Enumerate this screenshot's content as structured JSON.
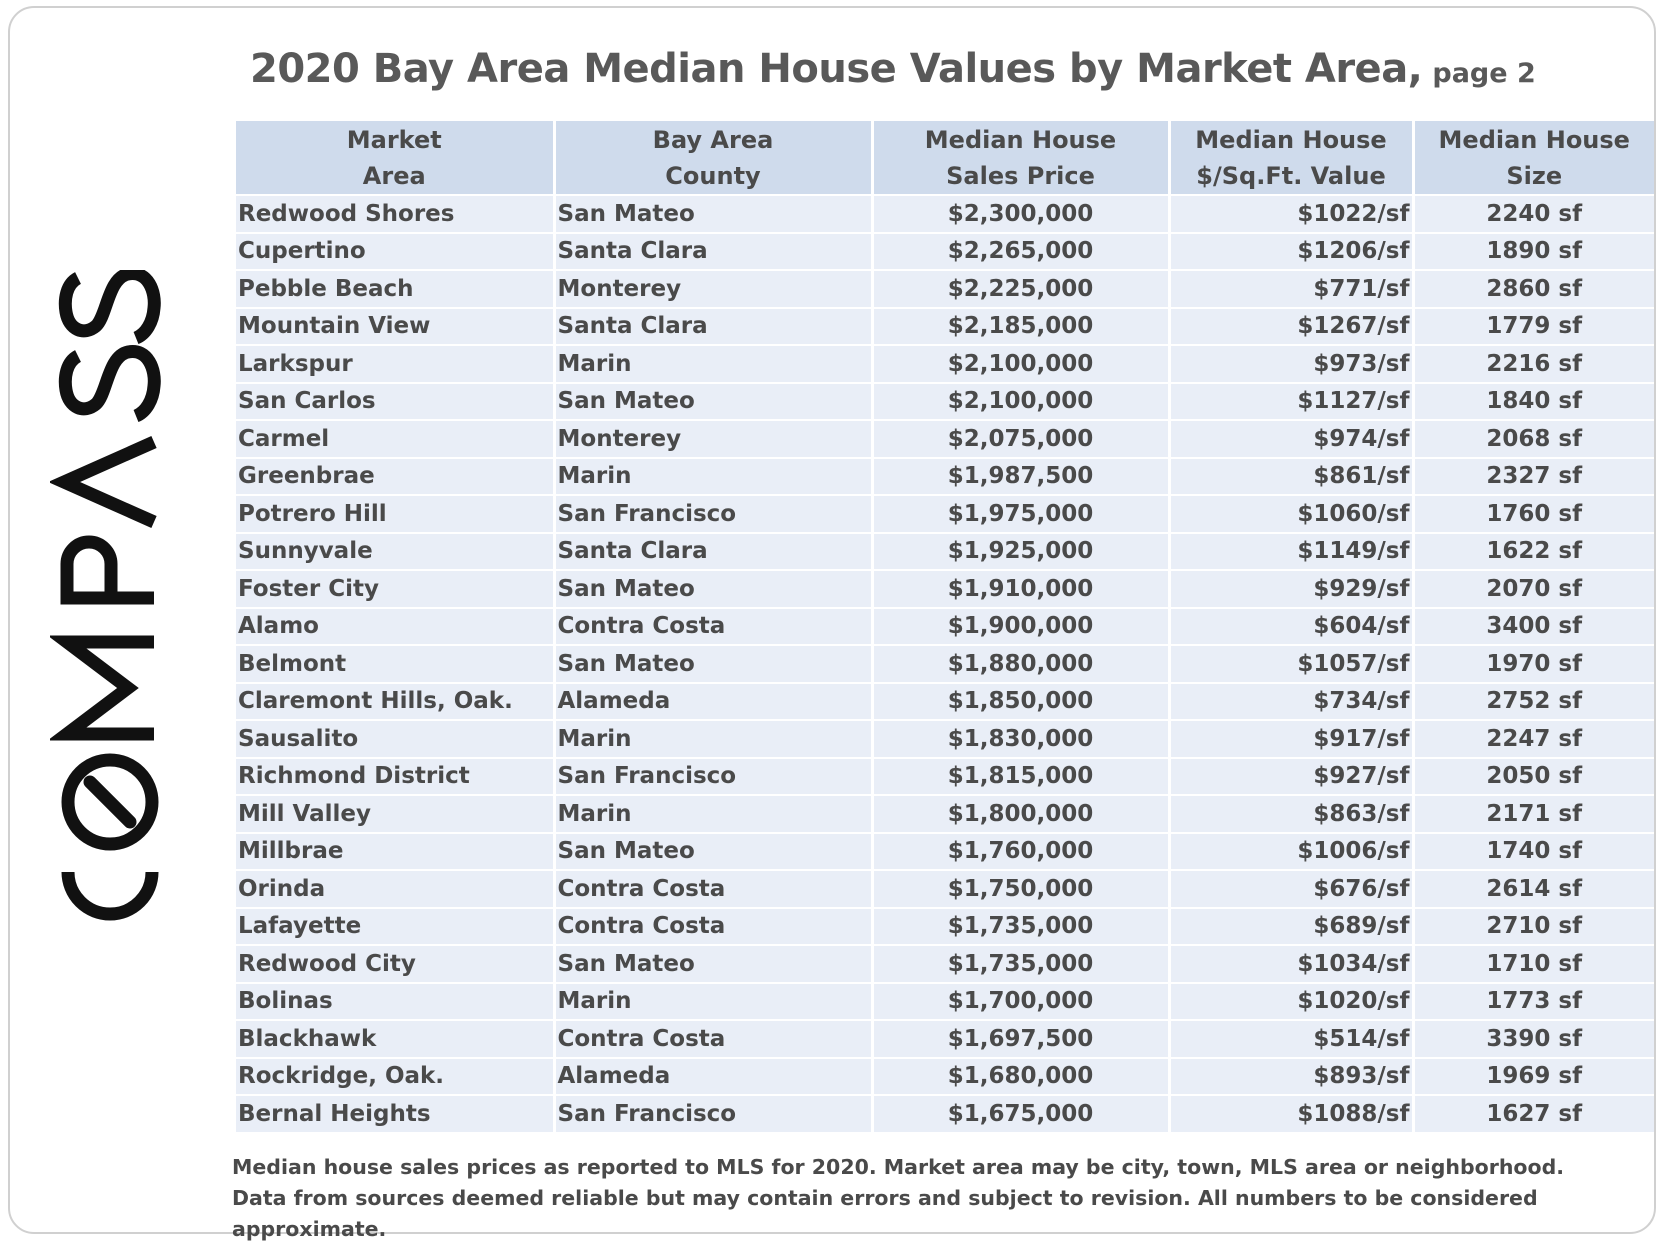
{
  "title": {
    "main": "2020 Bay Area Median House Values by Market Area,",
    "sub": "page 2"
  },
  "logo": {
    "text": "COMPASS",
    "color": "#111111"
  },
  "table": {
    "headers": [
      "Market\nArea",
      "Bay Area\nCounty",
      "Median House\nSales Price",
      "Median House\n$/Sq.Ft. Value",
      "Median House\nSize"
    ],
    "rows": [
      [
        "Redwood Shores",
        "San Mateo",
        "$2,300,000",
        "$1022/sf",
        "2240 sf"
      ],
      [
        "Cupertino",
        "Santa Clara",
        "$2,265,000",
        "$1206/sf",
        "1890 sf"
      ],
      [
        "Pebble Beach",
        "Monterey",
        "$2,225,000",
        "$771/sf",
        "2860 sf"
      ],
      [
        "Mountain View",
        "Santa Clara",
        "$2,185,000",
        "$1267/sf",
        "1779 sf"
      ],
      [
        "Larkspur",
        "Marin",
        "$2,100,000",
        "$973/sf",
        "2216 sf"
      ],
      [
        "San Carlos",
        "San Mateo",
        "$2,100,000",
        "$1127/sf",
        "1840 sf"
      ],
      [
        "Carmel",
        "Monterey",
        "$2,075,000",
        "$974/sf",
        "2068 sf"
      ],
      [
        "Greenbrae",
        "Marin",
        "$1,987,500",
        "$861/sf",
        "2327 sf"
      ],
      [
        "Potrero Hill",
        "San Francisco",
        "$1,975,000",
        "$1060/sf",
        "1760 sf"
      ],
      [
        "Sunnyvale",
        "Santa Clara",
        "$1,925,000",
        "$1149/sf",
        "1622 sf"
      ],
      [
        "Foster City",
        "San Mateo",
        "$1,910,000",
        "$929/sf",
        "2070 sf"
      ],
      [
        "Alamo",
        "Contra Costa",
        "$1,900,000",
        "$604/sf",
        "3400 sf"
      ],
      [
        "Belmont",
        "San Mateo",
        "$1,880,000",
        "$1057/sf",
        "1970 sf"
      ],
      [
        "Claremont Hills, Oak.",
        "Alameda",
        "$1,850,000",
        "$734/sf",
        "2752 sf"
      ],
      [
        "Sausalito",
        "Marin",
        "$1,830,000",
        "$917/sf",
        "2247 sf"
      ],
      [
        "Richmond District",
        "San Francisco",
        "$1,815,000",
        "$927/sf",
        "2050 sf"
      ],
      [
        "Mill Valley",
        "Marin",
        "$1,800,000",
        "$863/sf",
        "2171 sf"
      ],
      [
        "Millbrae",
        "San Mateo",
        "$1,760,000",
        "$1006/sf",
        "1740 sf"
      ],
      [
        "Orinda",
        "Contra Costa",
        "$1,750,000",
        "$676/sf",
        "2614 sf"
      ],
      [
        "Lafayette",
        "Contra Costa",
        "$1,735,000",
        "$689/sf",
        "2710 sf"
      ],
      [
        "Redwood City",
        "San Mateo",
        "$1,735,000",
        "$1034/sf",
        "1710 sf"
      ],
      [
        "Bolinas",
        "Marin",
        "$1,700,000",
        "$1020/sf",
        "1773 sf"
      ],
      [
        "Blackhawk",
        "Contra Costa",
        "$1,697,500",
        "$514/sf",
        "3390 sf"
      ],
      [
        "Rockridge, Oak.",
        "Alameda",
        "$1,680,000",
        "$893/sf",
        "1969 sf"
      ],
      [
        "Bernal Heights",
        "San Francisco",
        "$1,675,000",
        "$1088/sf",
        "1627 sf"
      ]
    ]
  },
  "footnote": "Median house sales prices as reported to MLS for 2020. Market area may be city, town, MLS area or neighborhood. Data from sources deemed reliable but may contain errors and subject to revision. All numbers to be considered approximate.",
  "colors": {
    "header_bg": "#cfdbec",
    "row_bg": "#e9eef7",
    "text": "#4a4a4a",
    "title": "#595959"
  }
}
